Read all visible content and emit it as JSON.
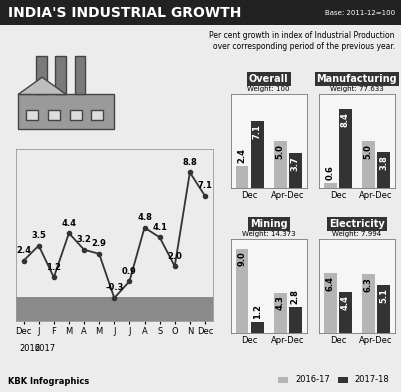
{
  "header": {
    "title": "INDIA'S INDUSTRIAL GROWTH",
    "note": "Base: 2011-12=100",
    "subtitle": "Per cent growth in index of Industrial Production\nover corresponding period of the previous year."
  },
  "footer": "KBK Infographics",
  "chart_data": [
    {
      "type": "line",
      "categories": [
        "Dec",
        "J",
        "F",
        "M",
        "A",
        "M",
        "J",
        "J",
        "A",
        "S",
        "O",
        "N",
        "Dec"
      ],
      "values": [
        2.4,
        3.5,
        1.2,
        4.4,
        3.2,
        2.9,
        -0.3,
        0.9,
        4.8,
        4.1,
        2.0,
        8.8,
        7.1
      ],
      "annotations": [
        "2016",
        "2017"
      ],
      "color": "#333333",
      "marker": "o",
      "line_style": "solid",
      "ylim": [
        -2,
        10.5
      ],
      "yticks": [],
      "tick_labels": "x",
      "data_labels": true
    },
    {
      "type": "bar",
      "title": "Overall",
      "subtitle": "Weight: 100",
      "categories": [
        "Dec",
        "Apr-Dec"
      ],
      "series": [
        {
          "name": "2016-17",
          "color": "#b5b5b5",
          "values": [
            2.4,
            5.0
          ]
        },
        {
          "name": "2017-18",
          "color": "#333333",
          "values": [
            7.1,
            3.7
          ]
        }
      ],
      "ylim": [
        0,
        10
      ],
      "yticks": [],
      "tick_labels": "x",
      "data_labels": true,
      "legend": "lower right"
    },
    {
      "type": "bar",
      "title": "Manufacturing",
      "subtitle": "Weight: 77.633",
      "categories": [
        "Dec",
        "Apr-Dec"
      ],
      "series": [
        {
          "name": "2016-17",
          "color": "#b5b5b5",
          "values": [
            0.6,
            5.0
          ]
        },
        {
          "name": "2017-18",
          "color": "#333333",
          "values": [
            8.4,
            3.8
          ]
        }
      ],
      "ylim": [
        0,
        10
      ],
      "yticks": [],
      "tick_labels": "x",
      "data_labels": true
    },
    {
      "type": "bar",
      "title": "Mining",
      "subtitle": "Weight: 14.373",
      "categories": [
        "Dec",
        "Apr-Dec"
      ],
      "series": [
        {
          "name": "2016-17",
          "color": "#b5b5b5",
          "values": [
            9.0,
            4.3
          ]
        },
        {
          "name": "2017-18",
          "color": "#333333",
          "values": [
            1.2,
            2.8
          ]
        }
      ],
      "ylim": [
        0,
        10
      ],
      "yticks": [],
      "tick_labels": "x",
      "data_labels": true
    },
    {
      "type": "bar",
      "title": "Electricity",
      "subtitle": "Weight: 7.994",
      "categories": [
        "Dec",
        "Apr-Dec"
      ],
      "series": [
        {
          "name": "2016-17",
          "color": "#b5b5b5",
          "values": [
            6.4,
            6.3
          ]
        },
        {
          "name": "2017-18",
          "color": "#333333",
          "values": [
            4.4,
            5.1
          ]
        }
      ],
      "ylim": [
        0,
        10
      ],
      "yticks": [],
      "tick_labels": "x",
      "data_labels": true
    }
  ]
}
